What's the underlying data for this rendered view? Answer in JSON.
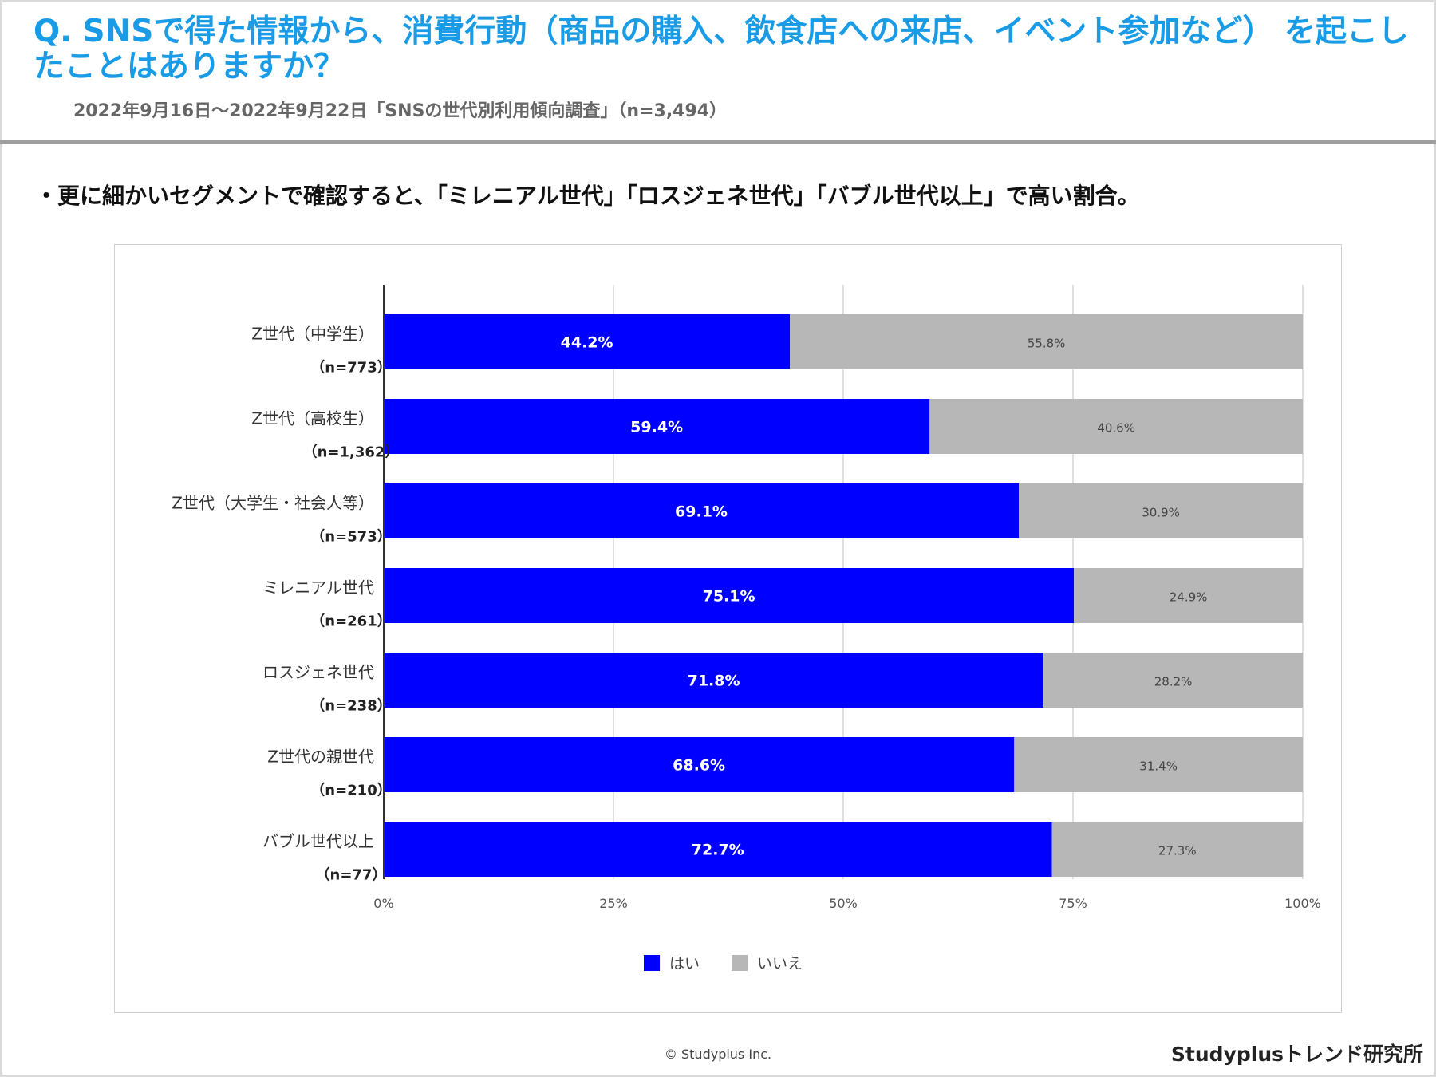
{
  "title": "Q. SNSで得た情報から、消費行動（商品の購入、飲食店への来店、イベント参加など） を起こしたことはありますか？",
  "subtitle": "2022年9月16日～2022年9月22日「SNSの世代別利用傾向調査」（n=3,494）",
  "bullet": "・更に細かいセグメントで確認すると、「ミレニアル世代」「ロスジェネ世代」「バブル世代以上」で高い割合。",
  "chart_data": {
    "type": "bar",
    "orientation": "horizontal",
    "stacked": true,
    "categories": [
      {
        "label": "Z世代（中学生）",
        "n": "（n=773）"
      },
      {
        "label": "Z世代（高校生）",
        "n": "（n=1,362）"
      },
      {
        "label": "Z世代（大学生・社会人等）",
        "n": "（n=573）"
      },
      {
        "label": "ミレニアル世代",
        "n": "（n=261）"
      },
      {
        "label": "ロスジェネ世代",
        "n": "（n=238）"
      },
      {
        "label": "Z世代の親世代",
        "n": "（n=210）"
      },
      {
        "label": "バブル世代以上",
        "n": "（n=77）"
      }
    ],
    "series": [
      {
        "name": "はい",
        "color": "#0000ff",
        "label_color": "#ffffff",
        "values": [
          44.2,
          59.4,
          69.1,
          75.1,
          71.8,
          68.6,
          72.7
        ]
      },
      {
        "name": "いいえ",
        "color": "#b7b7b7",
        "label_color": "#444444",
        "values": [
          55.8,
          40.6,
          30.9,
          24.9,
          28.2,
          31.4,
          27.3
        ]
      }
    ],
    "xlim": [
      0,
      100
    ],
    "xticks": [
      0,
      25,
      50,
      75,
      100
    ],
    "xtick_labels": [
      "0%",
      "25%",
      "50%",
      "75%",
      "100%"
    ],
    "grid": true,
    "legend": "bottom-center"
  },
  "footer": {
    "copyright": "© Studyplus Inc.",
    "brand": "Studyplusトレンド研究所"
  }
}
